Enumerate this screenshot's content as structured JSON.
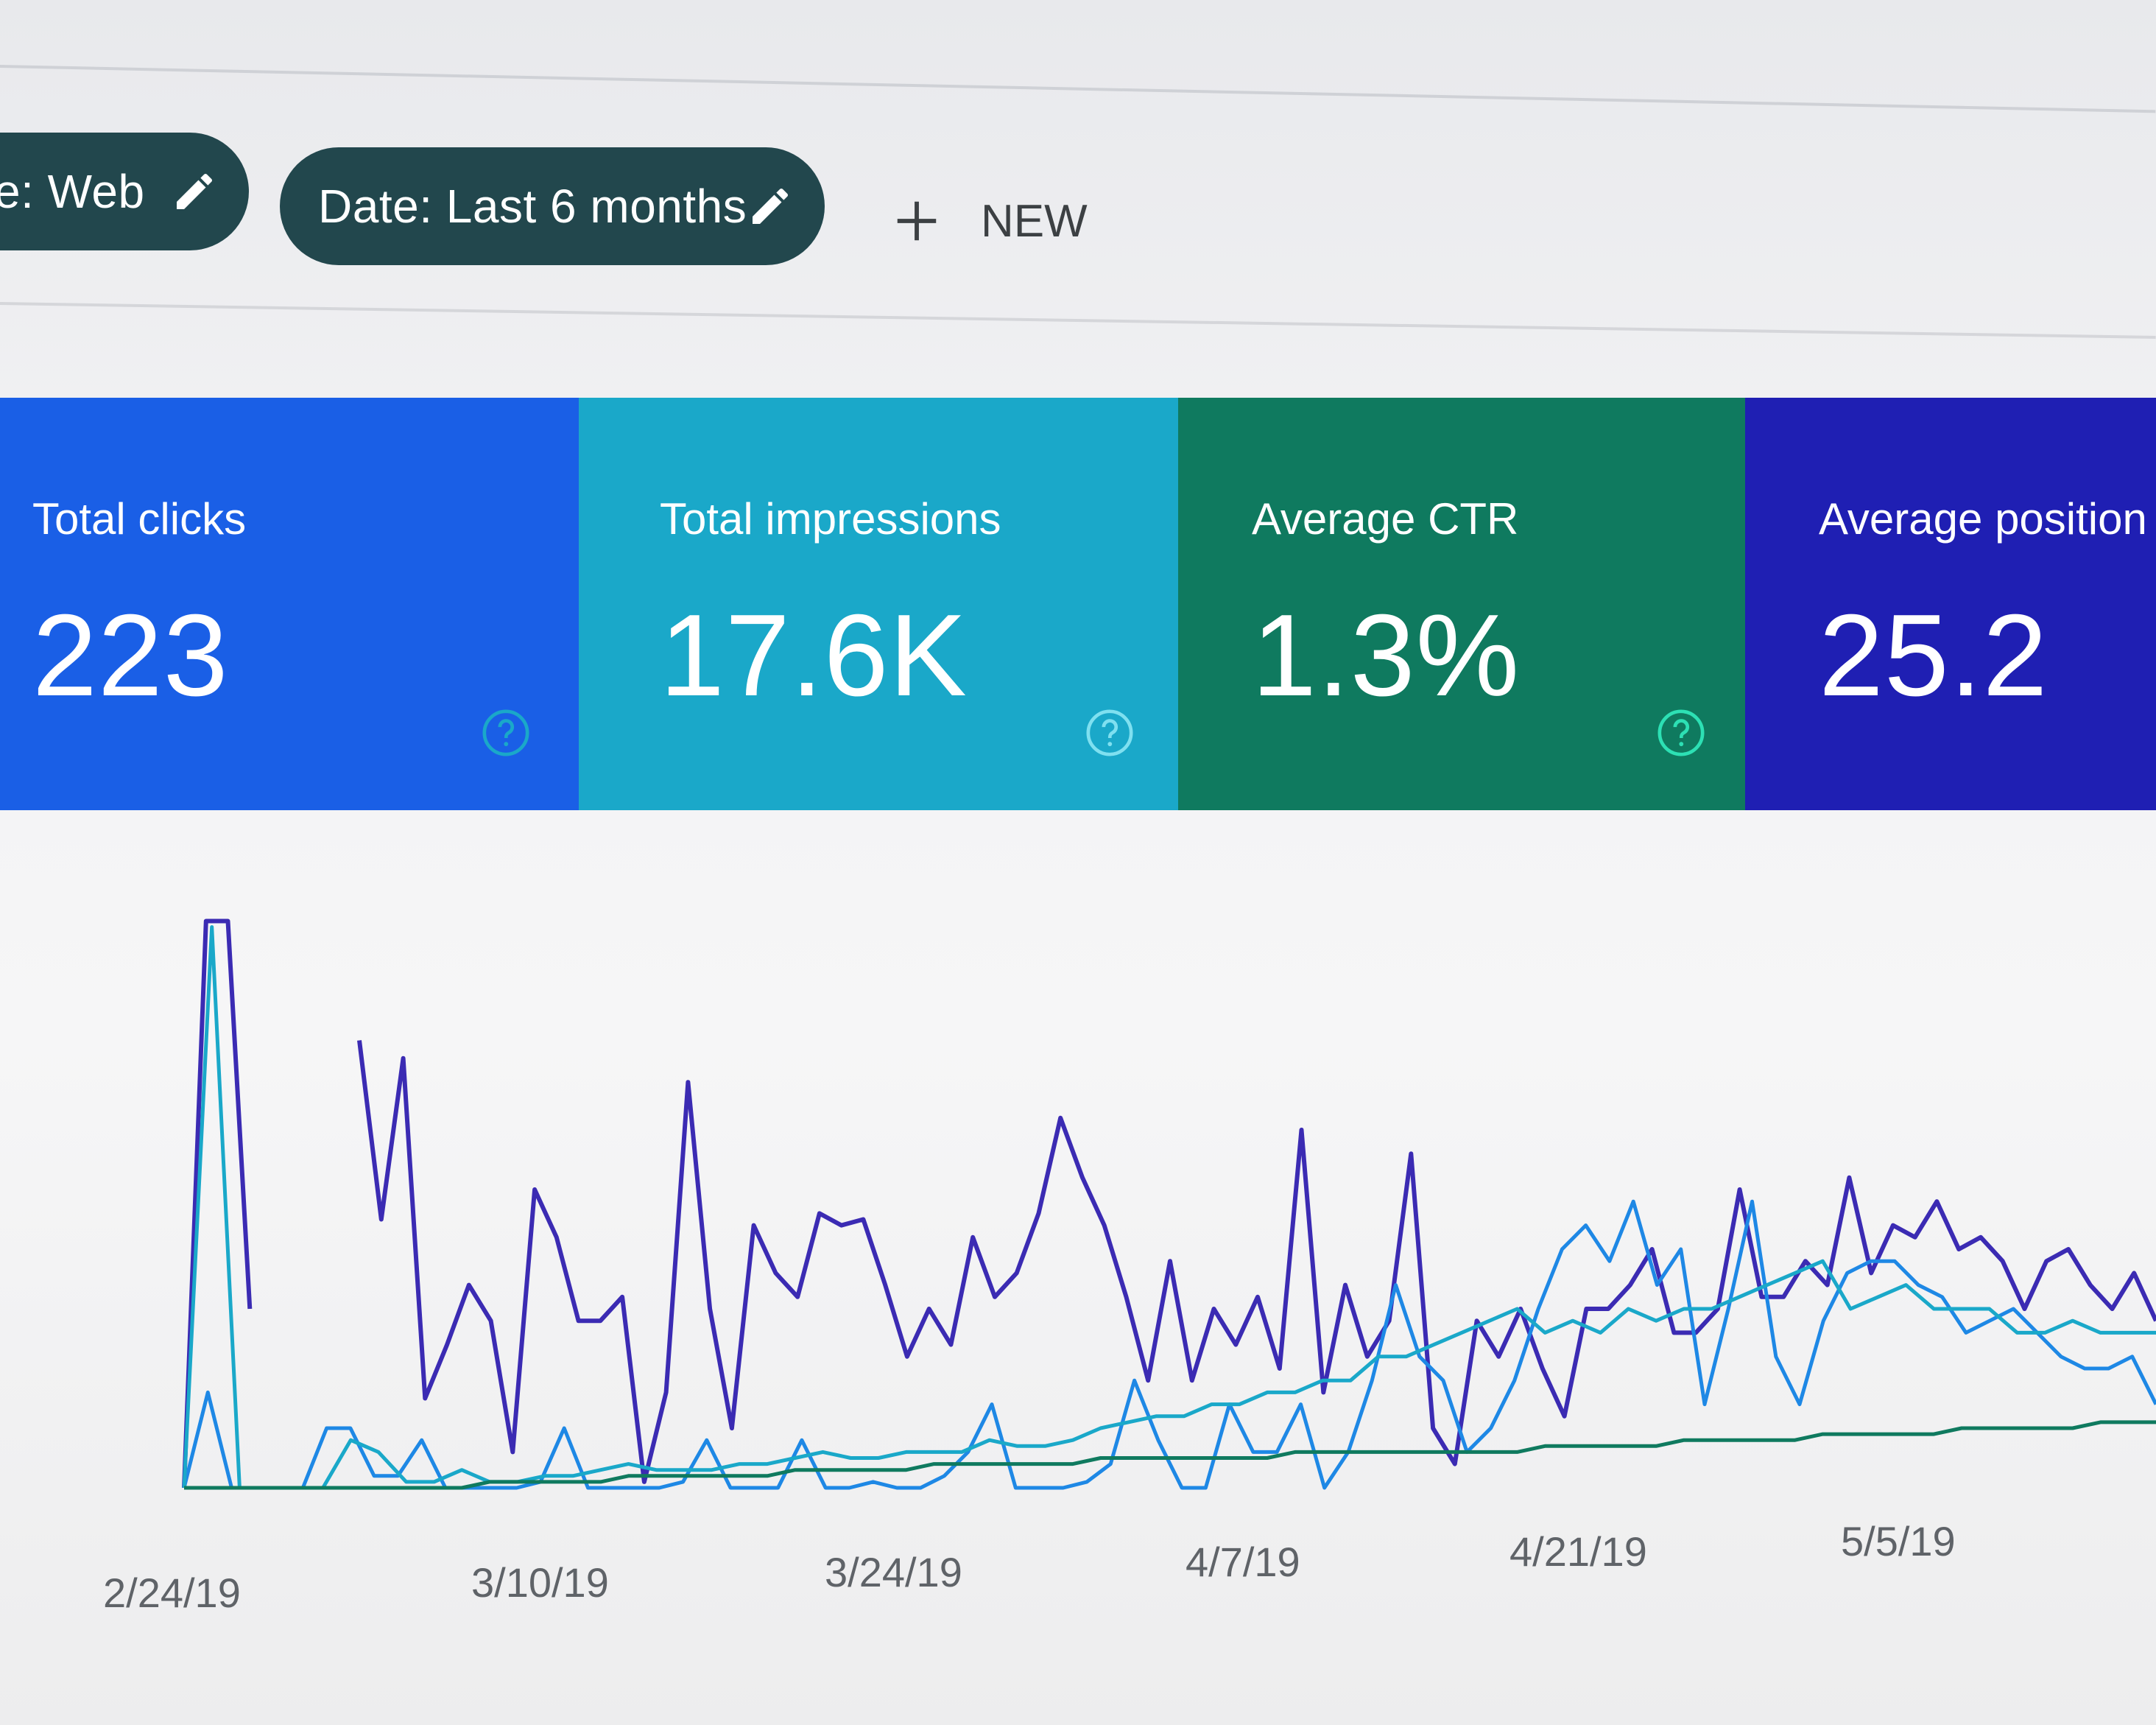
{
  "filters": {
    "search_type_chip": "e: Web",
    "date_chip": "Date: Last 6 months",
    "new_button": "NEW"
  },
  "metrics": [
    {
      "title": "Total clicks",
      "value": "223",
      "color": "#1a5fe6"
    },
    {
      "title": "Total impressions",
      "value": "17.6K",
      "color": "#1aa8c9"
    },
    {
      "title": "Average CTR",
      "value": "1.3%",
      "color": "#0f7a5f"
    },
    {
      "title": "Average position",
      "value": "25.2",
      "color": "#1f1fb3"
    }
  ],
  "icons": {
    "edit": "pencil-icon",
    "add": "plus-icon",
    "help": "help-circle-icon"
  },
  "chart_data": {
    "type": "line",
    "x_tick_labels": [
      "2/24/19",
      "3/10/19",
      "3/24/19",
      "4/7/19",
      "4/21/19",
      "5/5/19"
    ],
    "grid": false,
    "series": [
      {
        "color": "#3b2bb3",
        "values": [
          0,
          95,
          95,
          30,
          null,
          null,
          null,
          null,
          75,
          45,
          72,
          15,
          24,
          34,
          28,
          6,
          50,
          42,
          28,
          28,
          32,
          1,
          16,
          68,
          30,
          10,
          44,
          36,
          32,
          46,
          44,
          45,
          34,
          22,
          30,
          24,
          42,
          32,
          36,
          46,
          62,
          52,
          44,
          32,
          18,
          38,
          18,
          30,
          24,
          32,
          20,
          60,
          16,
          34,
          22,
          28,
          56,
          10,
          4,
          28,
          22,
          30,
          20,
          12,
          30,
          30,
          34,
          40,
          26,
          26,
          30,
          50,
          32,
          32,
          38,
          34,
          52,
          36,
          44,
          42,
          48,
          40,
          42,
          38,
          30,
          38,
          40,
          34,
          30,
          36,
          28
        ]
      },
      {
        "color": "#1e88e5",
        "values": [
          0,
          16,
          0,
          0,
          0,
          0,
          10,
          10,
          2,
          2,
          8,
          0,
          0,
          0,
          0,
          1,
          10,
          0,
          0,
          0,
          0,
          1,
          8,
          0,
          0,
          0,
          8,
          0,
          0,
          1,
          0,
          0,
          2,
          6,
          14,
          0,
          0,
          0,
          1,
          4,
          18,
          8,
          0,
          0,
          14,
          6,
          6,
          14,
          0,
          6,
          18,
          34,
          22,
          18,
          6,
          10,
          18,
          30,
          40,
          44,
          38,
          48,
          34,
          40,
          14,
          30,
          48,
          22,
          14,
          28,
          36,
          38,
          38,
          34,
          32,
          26,
          28,
          30,
          26,
          22,
          20,
          20,
          22,
          14
        ]
      },
      {
        "color": "#1aa8c9",
        "values": [
          0,
          94,
          0,
          0,
          0,
          0,
          8,
          6,
          1,
          1,
          3,
          1,
          1,
          2,
          2,
          3,
          4,
          3,
          3,
          3,
          4,
          4,
          5,
          6,
          5,
          5,
          6,
          6,
          6,
          8,
          7,
          7,
          8,
          10,
          11,
          12,
          12,
          14,
          14,
          16,
          16,
          18,
          18,
          22,
          22,
          24,
          26,
          28,
          30,
          26,
          28,
          26,
          30,
          28,
          30,
          30,
          32,
          34,
          36,
          38,
          30,
          32,
          34,
          30,
          30,
          30,
          26,
          26,
          28,
          26,
          26,
          26
        ]
      },
      {
        "color": "#0f7a5f",
        "values": [
          0,
          0,
          0,
          0,
          0,
          0,
          0,
          0,
          0,
          0,
          0,
          1,
          1,
          1,
          1,
          1,
          2,
          2,
          2,
          2,
          2,
          2,
          3,
          3,
          3,
          3,
          3,
          4,
          4,
          4,
          4,
          4,
          4,
          5,
          5,
          5,
          5,
          5,
          5,
          5,
          6,
          6,
          6,
          6,
          6,
          6,
          6,
          6,
          6,
          7,
          7,
          7,
          7,
          7,
          8,
          8,
          8,
          8,
          8,
          9,
          9,
          9,
          9,
          9,
          10,
          10,
          10,
          10,
          10,
          11,
          11,
          11
        ]
      }
    ]
  }
}
